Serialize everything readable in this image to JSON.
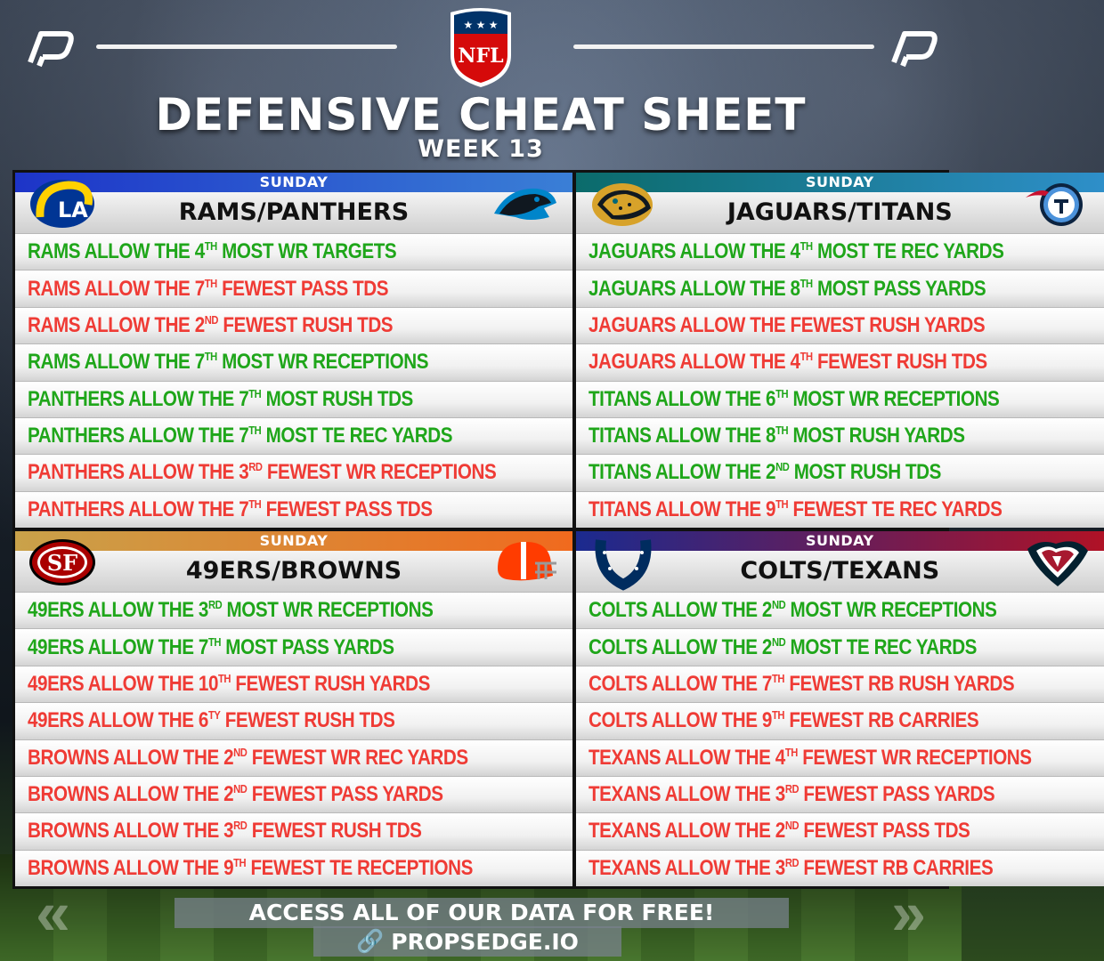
{
  "header": {
    "brand_logo": "propsedge-logo-icon",
    "league_logo": "nfl-shield-icon",
    "league_text": "NFL",
    "title": "DEFENSIVE CHEAT SHEET",
    "subtitle": "WEEK 13"
  },
  "colors": {
    "positive": "#1fa61a",
    "negative": "#ef3b35"
  },
  "panels": [
    {
      "day": "SUNDAY",
      "matchup": "RAMS/PANTHERS",
      "day_bar_color": [
        "#1d34c8",
        "#3a7fd6"
      ],
      "left_logo": "rams-logo-icon",
      "right_logo": "panthers-logo-icon",
      "rows": [
        {
          "text": "RAMS ALLOW THE 4TH MOST WR TARGETS",
          "tone": "positive"
        },
        {
          "text": "RAMS ALLOW THE 7TH FEWEST PASS TDS",
          "tone": "negative"
        },
        {
          "text": "RAMS ALLOW THE 2ND FEWEST RUSH TDS",
          "tone": "negative"
        },
        {
          "text": "RAMS ALLOW THE 7TH MOST WR RECEPTIONS",
          "tone": "positive"
        },
        {
          "text": "PANTHERS ALLOW THE 7TH MOST RUSH TDS",
          "tone": "positive"
        },
        {
          "text": "PANTHERS ALLOW THE 7TH MOST TE REC YARDS",
          "tone": "positive"
        },
        {
          "text": "PANTHERS ALLOW THE 3RD FEWEST WR RECEPTIONS",
          "tone": "negative"
        },
        {
          "text": "PANTHERS ALLOW THE 7TH FEWEST PASS TDS",
          "tone": "negative"
        }
      ]
    },
    {
      "day": "SUNDAY",
      "matchup": "JAGUARS/TITANS",
      "day_bar_color": [
        "#0b6b6b",
        "#2e8fc9"
      ],
      "left_logo": "jaguars-logo-icon",
      "right_logo": "titans-logo-icon",
      "rows": [
        {
          "text": "JAGUARS ALLOW THE 4TH MOST TE REC YARDS",
          "tone": "positive"
        },
        {
          "text": "JAGUARS ALLOW THE 8TH MOST PASS YARDS",
          "tone": "positive"
        },
        {
          "text": "JAGUARS ALLOW THE FEWEST RUSH YARDS",
          "tone": "negative"
        },
        {
          "text": "JAGUARS ALLOW THE 4TH FEWEST RUSH TDS",
          "tone": "negative"
        },
        {
          "text": "TITANS ALLOW THE 6TH MOST WR RECEPTIONS",
          "tone": "positive"
        },
        {
          "text": "TITANS ALLOW THE 8TH MOST RUSH YARDS",
          "tone": "positive"
        },
        {
          "text": "TITANS ALLOW THE 2ND MOST RUSH TDS",
          "tone": "positive"
        },
        {
          "text": "TITANS ALLOW THE 9TH FEWEST TE REC YARDS",
          "tone": "negative"
        }
      ]
    },
    {
      "day": "SUNDAY",
      "matchup": "49ERS/BROWNS",
      "day_bar_color": [
        "#c9a24a",
        "#f06a1e"
      ],
      "left_logo": "49ers-logo-icon",
      "left_logo_text": "SF",
      "right_logo": "browns-helmet-icon",
      "rows": [
        {
          "text": "49ERS ALLOW THE 3RD MOST WR RECEPTIONS",
          "tone": "positive"
        },
        {
          "text": "49ERS ALLOW THE 7TH MOST PASS YARDS",
          "tone": "positive"
        },
        {
          "text": "49ERS ALLOW THE 10TH FEWEST RUSH YARDS",
          "tone": "negative"
        },
        {
          "text": "49ERS ALLOW THE 6TY FEWEST RUSH TDS",
          "tone": "negative"
        },
        {
          "text": "BROWNS ALLOW THE 2ND FEWEST WR REC YARDS",
          "tone": "negative"
        },
        {
          "text": "BROWNS ALLOW THE 2ND FEWEST PASS YARDS",
          "tone": "negative"
        },
        {
          "text": "BROWNS ALLOW THE 3RD FEWEST RUSH TDS",
          "tone": "negative"
        },
        {
          "text": "BROWNS ALLOW THE 9TH FEWEST TE RECEPTIONS",
          "tone": "negative"
        }
      ]
    },
    {
      "day": "SUNDAY",
      "matchup": "COLTS/TEXANS",
      "day_bar_color": [
        "#1b2a8f",
        "#b01226"
      ],
      "left_logo": "colts-horseshoe-icon",
      "right_logo": "texans-logo-icon",
      "rows": [
        {
          "text": "COLTS ALLOW THE 2ND MOST WR RECEPTIONS",
          "tone": "positive"
        },
        {
          "text": "COLTS ALLOW THE 2ND MOST TE REC YARDS",
          "tone": "positive"
        },
        {
          "text": "COLTS ALLOW THE 7TH FEWEST RB RUSH YARDS",
          "tone": "negative"
        },
        {
          "text": "COLTS ALLOW THE 9TH FEWEST RB CARRIES",
          "tone": "negative"
        },
        {
          "text": "TEXANS ALLOW THE 4TH FEWEST WR RECEPTIONS",
          "tone": "negative"
        },
        {
          "text": "TEXANS ALLOW THE 3RD FEWEST PASS YARDS",
          "tone": "negative"
        },
        {
          "text": "TEXANS ALLOW THE 2ND FEWEST PASS TDS",
          "tone": "negative"
        },
        {
          "text": "TEXANS ALLOW THE 3RD FEWEST RB CARRIES",
          "tone": "negative"
        }
      ]
    }
  ],
  "footer": {
    "cta": "ACCESS ALL OF OUR DATA FOR FREE!",
    "link_icon": "link-icon",
    "site": "PROPSEDGE.IO"
  }
}
